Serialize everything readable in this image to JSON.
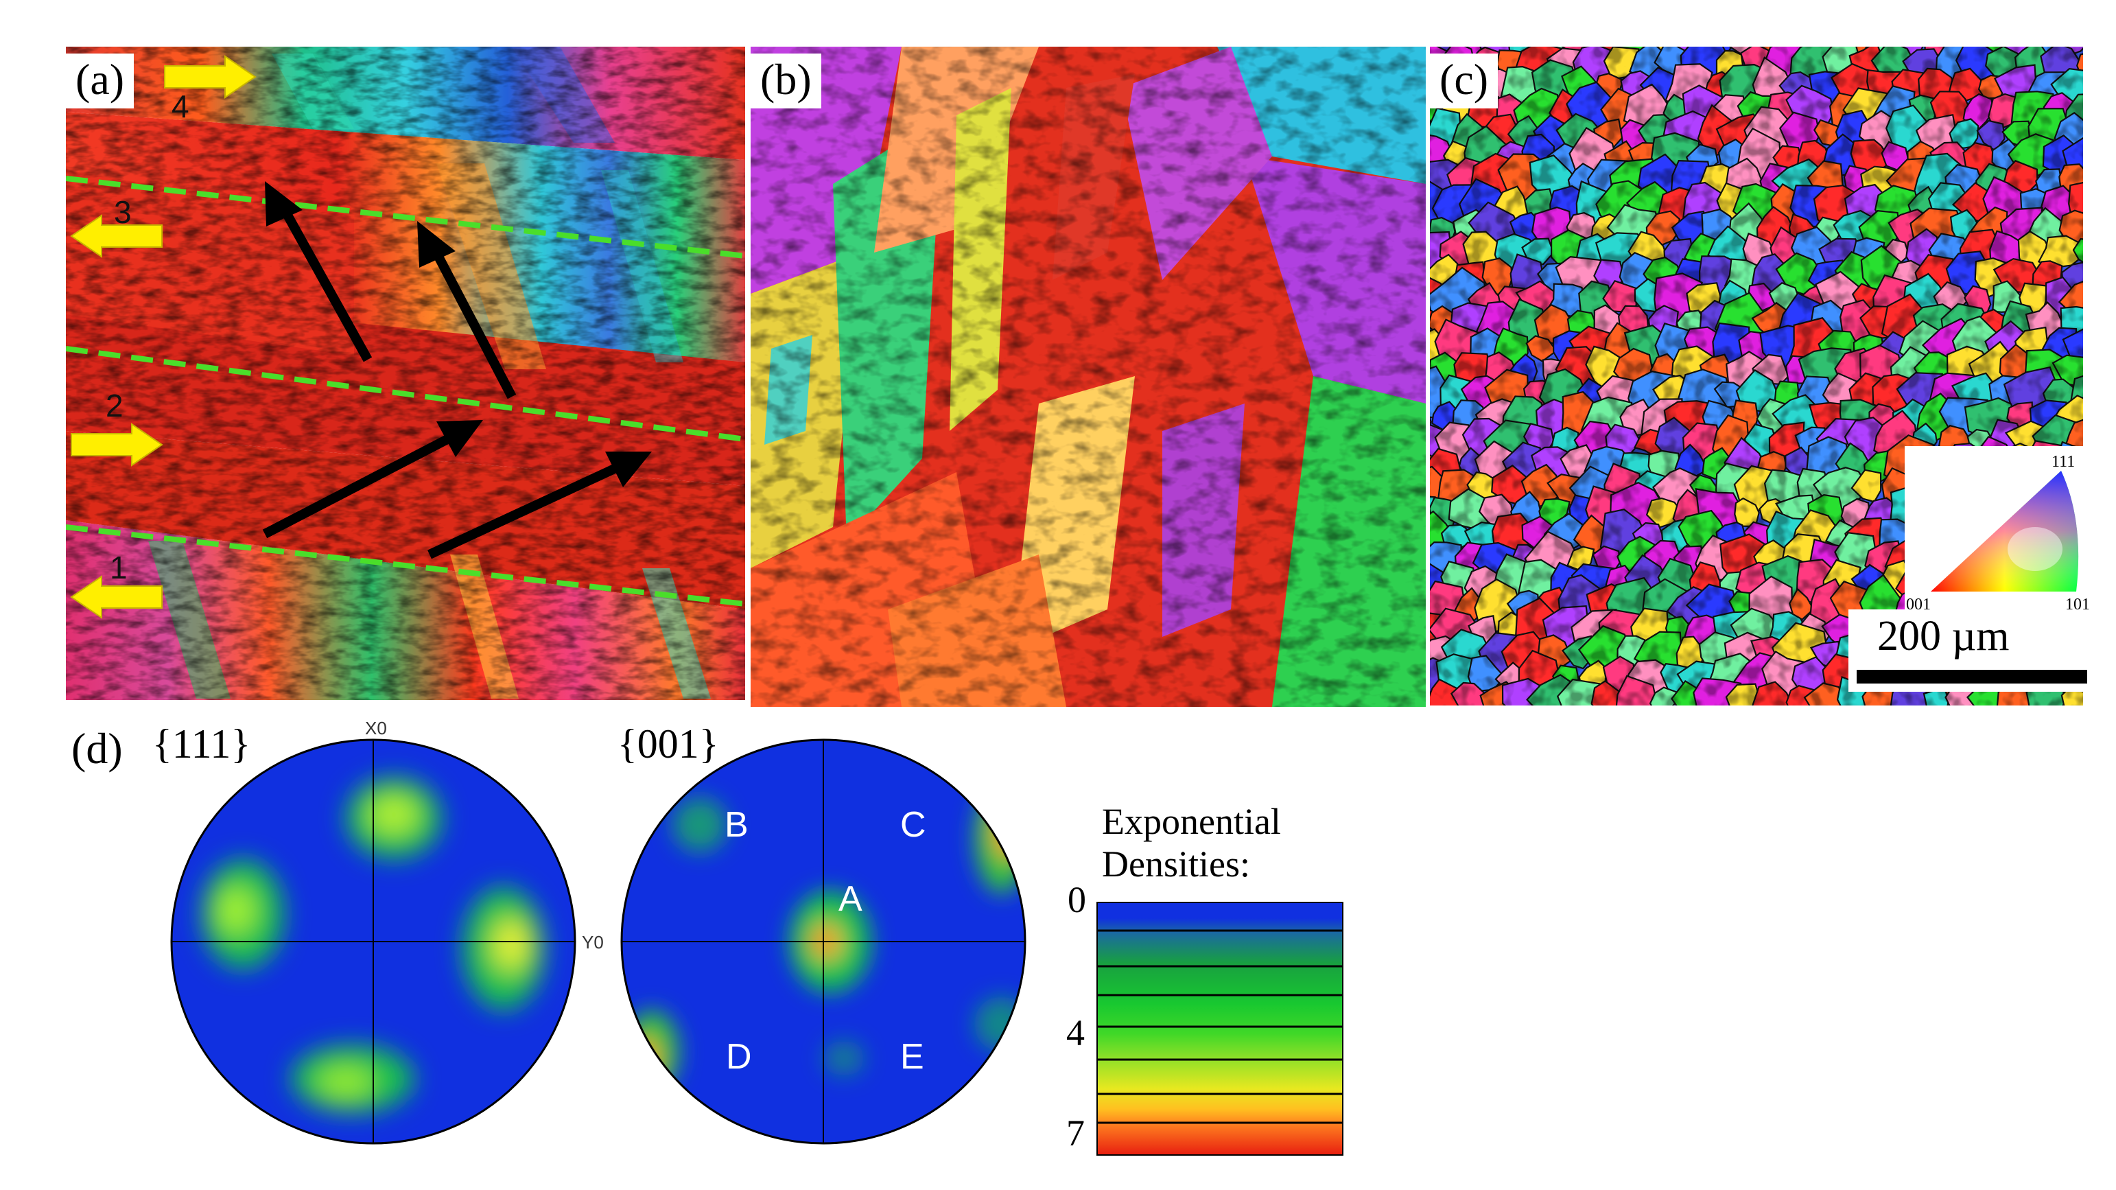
{
  "panels": {
    "a": {
      "label": "(a)",
      "layer_numbers": [
        "1",
        "2",
        "3",
        "4"
      ]
    },
    "b": {
      "label": "(b)"
    },
    "c": {
      "label": "(c)"
    },
    "d": {
      "label": "(d)"
    }
  },
  "scale_bar": {
    "text": "200 µm"
  },
  "ipf_key": {
    "top": "111",
    "left": "001",
    "right": "101"
  },
  "pole_figures": [
    {
      "title": "{111}",
      "axis_top": "X0",
      "axis_right": "Y0"
    },
    {
      "title": "{001}",
      "poles": [
        "A",
        "B",
        "C",
        "D",
        "E"
      ]
    }
  ],
  "density_legend": {
    "title_line1": "Exponential",
    "title_line2": "Densities:",
    "ticks": [
      "0",
      "4",
      "7"
    ]
  },
  "colors": {
    "pf_background": "#1030e0",
    "guide_line": "#4ade2a",
    "arrow_yellow": "#ffef00",
    "arrow_black": "#000000"
  }
}
